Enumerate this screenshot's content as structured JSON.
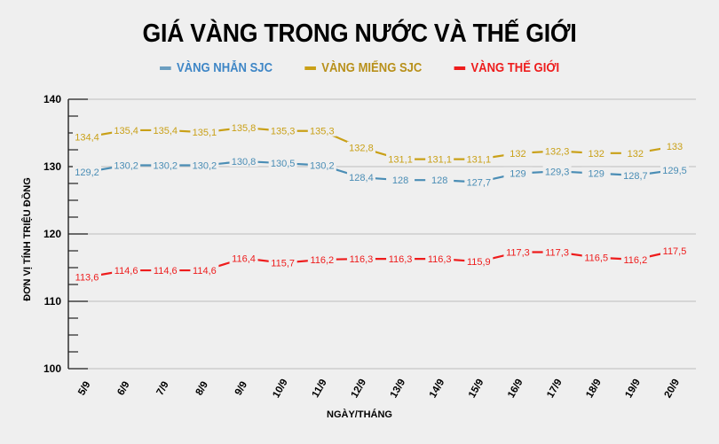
{
  "chart_data": {
    "type": "line",
    "title": "GIÁ VÀNG TRONG NƯỚC VÀ THẾ GIỚI",
    "xlabel": "NGÀY/THÁNG",
    "ylabel": "ĐƠN VỊ TÍNH TRIỆU ĐỒNG",
    "ylim": [
      100,
      140
    ],
    "yticks": [
      100,
      110,
      120,
      130,
      140
    ],
    "grid": true,
    "legend_position": "top",
    "categories": [
      "5/9",
      "6/9",
      "7/9",
      "8/9",
      "9/9",
      "10/9",
      "11/9",
      "12/9",
      "13/9",
      "14/9",
      "15/9",
      "16/9",
      "17/9",
      "18/9",
      "19/9",
      "20/9"
    ],
    "series": [
      {
        "name": "VÀNG NHẪN SJC",
        "color": "#4a8db5",
        "values": [
          129.2,
          130.2,
          130.2,
          130.2,
          130.8,
          130.5,
          130.2,
          128.4,
          128,
          128,
          127.7,
          129,
          129.3,
          129,
          128.7,
          129.5
        ],
        "labels": [
          "129,2",
          "130,2",
          "130,2",
          "130,2",
          "130,8",
          "130,5",
          "130,2",
          "128,4",
          "128",
          "128",
          "127,7",
          "129",
          "129,3",
          "129",
          "128,7",
          "129,5"
        ]
      },
      {
        "name": "VÀNG MIẾNG SJC",
        "color": "#c9a017",
        "values": [
          134.4,
          135.4,
          135.4,
          135.1,
          135.8,
          135.3,
          135.3,
          132.8,
          131.1,
          131.1,
          131.1,
          132,
          132.3,
          132,
          132,
          133
        ],
        "labels": [
          "134,4",
          "135,4",
          "135,4",
          "135,1",
          "135,8",
          "135,3",
          "135,3",
          "132,8",
          "131,1",
          "131,1",
          "131,1",
          "132",
          "132,3",
          "132",
          "132",
          "133"
        ]
      },
      {
        "name": "VÀNG THẾ GIỚI",
        "color": "#ee1c1c",
        "values": [
          113.6,
          114.6,
          114.6,
          114.6,
          116.4,
          115.7,
          116.2,
          116.3,
          116.3,
          116.3,
          115.9,
          117.3,
          117.3,
          116.5,
          116.2,
          117.5
        ],
        "labels": [
          "113,6",
          "114,6",
          "114,6",
          "114,6",
          "116,4",
          "115,7",
          "116,2",
          "116,3",
          "116,3",
          "116,3",
          "115,9",
          "117,3",
          "117,3",
          "116,5",
          "116,2",
          "117,5"
        ]
      }
    ]
  },
  "legend": [
    {
      "label": "VÀNG NHẪN SJC",
      "color": "#4a8db5"
    },
    {
      "label": "VÀNG MIẾNG SJC",
      "color": "#c9a017"
    },
    {
      "label": "VÀNG THẾ GIỚI",
      "color": "#ee1c1c"
    }
  ]
}
